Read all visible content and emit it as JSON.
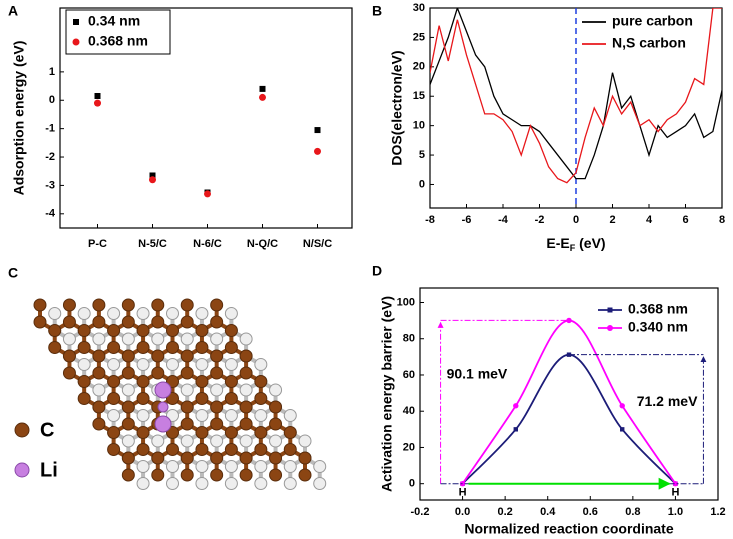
{
  "panel_labels": [
    "A",
    "B",
    "C",
    "D"
  ],
  "structure": {
    "legend": [
      "C",
      "Li"
    ]
  },
  "chart_data": [
    {
      "type": "scatter",
      "y_label": "Adsorption energy (eV)",
      "categories": [
        "P-C",
        "N-5/C",
        "N-6/C",
        "N-Q/C",
        "N/S/C"
      ],
      "series": [
        {
          "name": "0.34 nm",
          "color": "#000000",
          "marker": "square",
          "values": [
            0.15,
            -2.65,
            -3.25,
            0.4,
            -1.05
          ]
        },
        {
          "name": "0.368 nm",
          "color": "#e8171b",
          "marker": "circle",
          "values": [
            -0.1,
            -2.8,
            -3.3,
            0.1,
            -1.8
          ]
        }
      ],
      "ylim": [
        -4.5,
        3.25
      ],
      "yticks": [
        -4,
        -3,
        -2,
        -1,
        0,
        1
      ]
    },
    {
      "type": "line",
      "y_label": "DOS(electron/eV)",
      "x_label": [
        "E-E",
        "F",
        " (eV)"
      ],
      "x": [
        -8,
        -7.5,
        -7,
        -6.5,
        -6,
        -5.5,
        -5,
        -4.5,
        -4,
        -3.5,
        -3,
        -2.5,
        -2,
        -1.5,
        -1,
        -0.5,
        0,
        0.5,
        1,
        1.5,
        2,
        2.5,
        3,
        3.5,
        4,
        4.5,
        5,
        5.5,
        6,
        6.5,
        7,
        7.5,
        8
      ],
      "series": [
        {
          "name": "pure carbon",
          "color": "#000000",
          "values": [
            17,
            21,
            25,
            30,
            26,
            22,
            20,
            15,
            12,
            11,
            10,
            10,
            9,
            7,
            5,
            3,
            1,
            1,
            5,
            10,
            19,
            13,
            15,
            10,
            5,
            10,
            8,
            9,
            10,
            12,
            8,
            9,
            16
          ]
        },
        {
          "name": "N,S carbon",
          "color": "#e8171b",
          "values": [
            19,
            27,
            21,
            28,
            22,
            17,
            12,
            12,
            11,
            9,
            5,
            10,
            7,
            3,
            1,
            0.3,
            2,
            8,
            13,
            10,
            15,
            12,
            14,
            10,
            11,
            9,
            11,
            12,
            14,
            18,
            17,
            30,
            30
          ]
        }
      ],
      "vline": 0,
      "vline_color": "#1f3fe0",
      "xlim": [
        -8,
        8
      ],
      "xticks": [
        -8,
        -6,
        -4,
        -2,
        0,
        2,
        4,
        6,
        8
      ],
      "ylim": [
        -4,
        30
      ],
      "yticks": [
        0,
        5,
        10,
        15,
        20,
        25,
        30
      ]
    },
    {
      "type": "line",
      "y_label": "Activation energy barrier (eV)",
      "x_label": "Normalized reaction coordinate",
      "x": [
        0,
        0.25,
        0.5,
        0.75,
        1
      ],
      "series": [
        {
          "name": "0.368 nm",
          "color": "#1c1c78",
          "marker": "square",
          "values": [
            0,
            30,
            71.2,
            30,
            0
          ]
        },
        {
          "name": "0.340 nm",
          "color": "#ff00ff",
          "marker": "circle",
          "values": [
            0,
            43,
            90.1,
            43,
            0
          ]
        }
      ],
      "annotations": [
        "90.1 meV",
        "71.2 meV",
        "H",
        "H"
      ],
      "xlim": [
        -0.2,
        1.2
      ],
      "xticks": [
        -0.2,
        {
          "value": 0,
          "label": "0.0"
        },
        0.2,
        0.4,
        0.6,
        0.8,
        {
          "value": 1,
          "label": "1.0"
        },
        1.2
      ],
      "ylim": [
        -9,
        108
      ],
      "yticks": [
        0,
        20,
        40,
        60,
        80,
        100
      ]
    }
  ]
}
